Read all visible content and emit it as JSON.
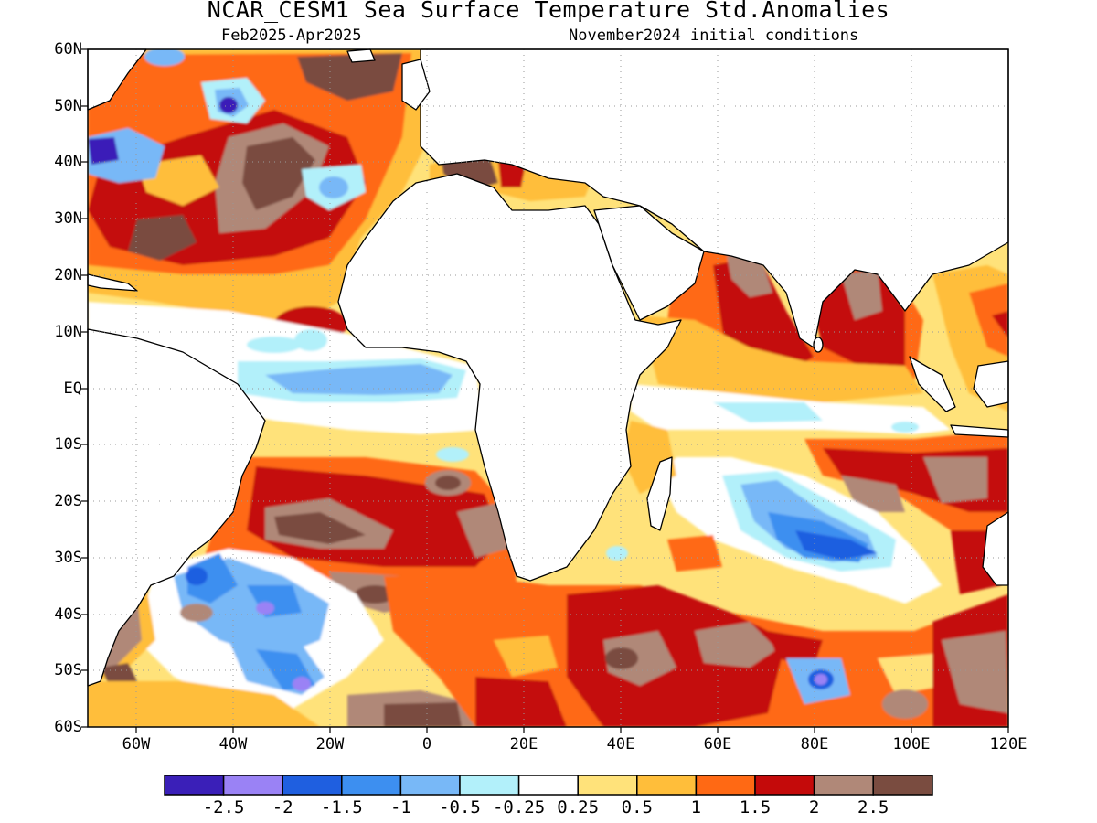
{
  "title": "NCAR_CESM1 Sea Surface Temperature Std.Anomalies",
  "valid_period": "Feb2025-Apr2025",
  "initial_conditions": "November2024 initial conditions",
  "latitude_labels": [
    "60N",
    "50N",
    "40N",
    "30N",
    "20N",
    "10N",
    "EQ",
    "10S",
    "20S",
    "30S",
    "40S",
    "50S",
    "60S"
  ],
  "longitude_labels": [
    "60W",
    "40W",
    "20W",
    "0",
    "20E",
    "40E",
    "60E",
    "80E",
    "100E",
    "120E"
  ],
  "colorbar": {
    "labels": [
      "-2.5",
      "-2",
      "-1.5",
      "-1",
      "-0.5",
      "-0.25",
      "0.25",
      "0.5",
      "1",
      "1.5",
      "2",
      "2.5"
    ],
    "colors": [
      "#3a1fb8",
      "#9a82f5",
      "#1f5fe0",
      "#3d8ff0",
      "#78b8f7",
      "#b2f0fa",
      "#ffffff",
      "#ffe27a",
      "#ffbe3a",
      "#ff6914",
      "#c40a0a",
      "#b08878",
      "#7a4c40"
    ]
  },
  "map_extent": {
    "lon": [
      -70,
      120
    ],
    "lat": [
      -60,
      60
    ]
  }
}
